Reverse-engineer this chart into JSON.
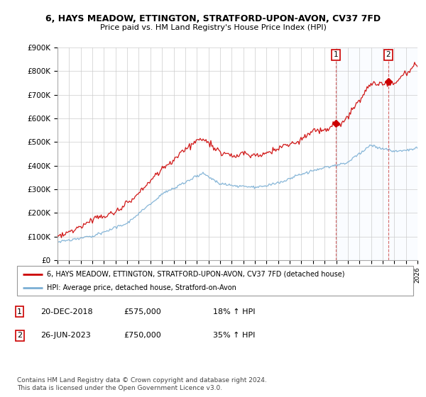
{
  "title": "6, HAYS MEADOW, ETTINGTON, STRATFORD-UPON-AVON, CV37 7FD",
  "subtitle": "Price paid vs. HM Land Registry's House Price Index (HPI)",
  "ylim": [
    0,
    900000
  ],
  "yticks": [
    0,
    100000,
    200000,
    300000,
    400000,
    500000,
    600000,
    700000,
    800000,
    900000
  ],
  "ytick_labels": [
    "£0",
    "£100K",
    "£200K",
    "£300K",
    "£400K",
    "£500K",
    "£600K",
    "£700K",
    "£800K",
    "£900K"
  ],
  "line1_color": "#cc0000",
  "line2_color": "#7bafd4",
  "legend_line1": "6, HAYS MEADOW, ETTINGTON, STRATFORD-UPON-AVON, CV37 7FD (detached house)",
  "legend_line2": "HPI: Average price, detached house, Stratford-on-Avon",
  "transaction1_date": "20-DEC-2018",
  "transaction1_price": "£575,000",
  "transaction1_hpi": "18% ↑ HPI",
  "transaction2_date": "26-JUN-2023",
  "transaction2_price": "£750,000",
  "transaction2_hpi": "35% ↑ HPI",
  "footer": "Contains HM Land Registry data © Crown copyright and database right 2024.\nThis data is licensed under the Open Government Licence v3.0.",
  "background_color": "#ffffff",
  "grid_color": "#cccccc",
  "shade_color": "#ddeeff",
  "transaction1_year": 2018.97,
  "transaction2_year": 2023.49,
  "transaction1_value": 575000,
  "transaction2_value": 750000
}
